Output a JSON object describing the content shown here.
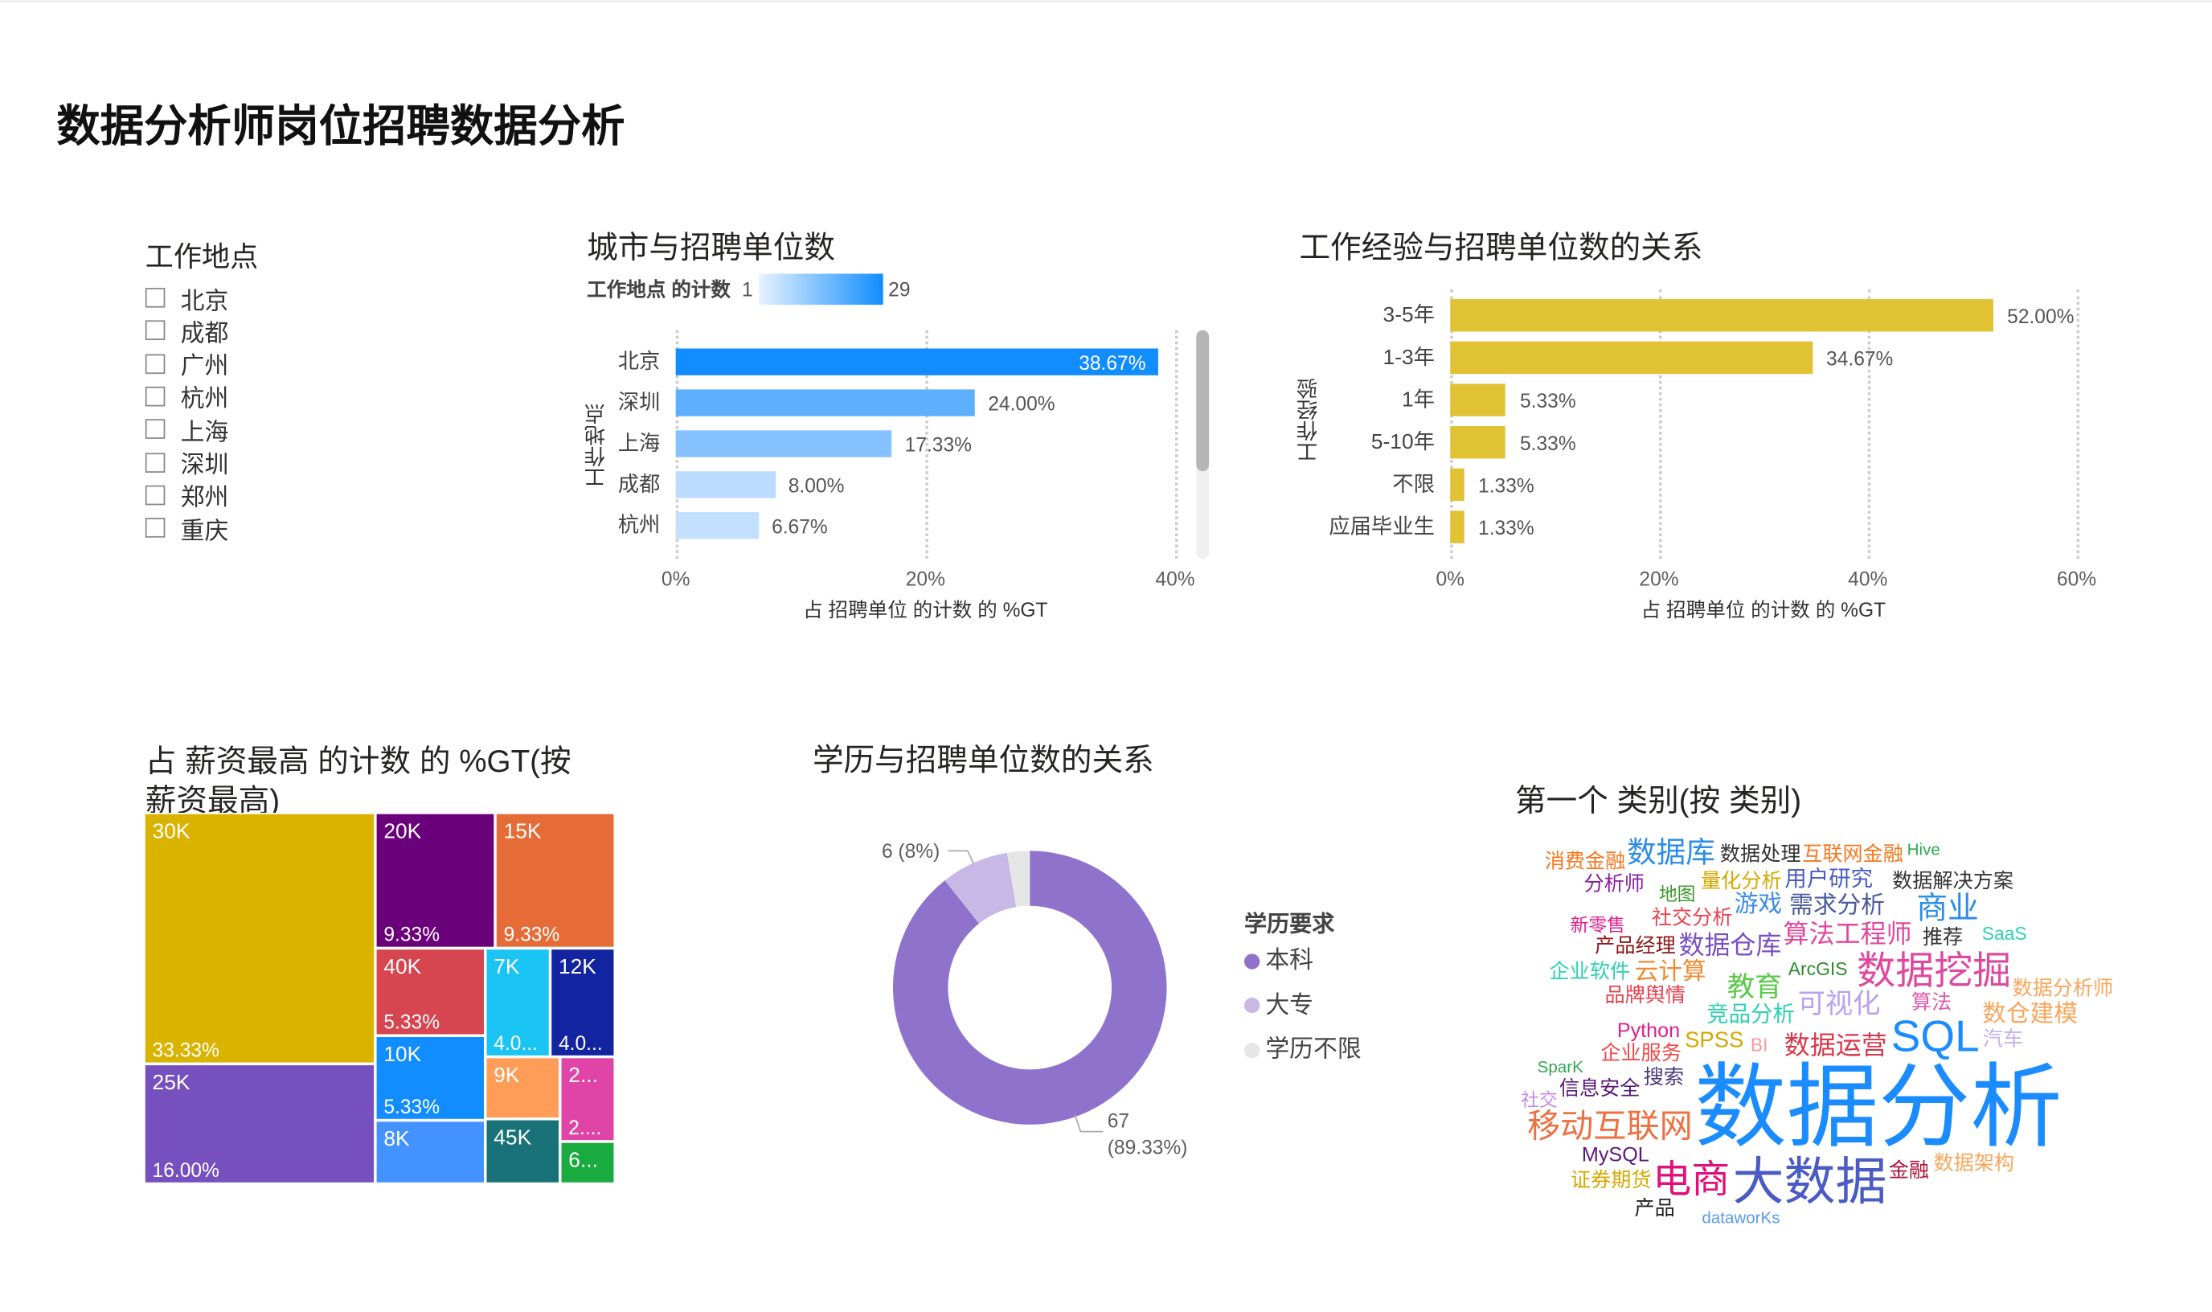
{
  "page_title": "数据分析师岗位招聘数据分析",
  "slicer": {
    "title": "工作地点",
    "items": [
      "北京",
      "成都",
      "广州",
      "杭州",
      "上海",
      "深圳",
      "郑州",
      "重庆"
    ]
  },
  "chart_data": [
    {
      "type": "bar",
      "orientation": "horizontal",
      "title": "城市与招聘单位数",
      "legend": {
        "title": "工作地点 的计数",
        "min": "1",
        "max": "29",
        "gradient": [
          "#e6f2ff",
          "#118dff"
        ]
      },
      "categories": [
        "北京",
        "深圳",
        "上海",
        "成都",
        "杭州"
      ],
      "values": [
        38.67,
        24.0,
        17.33,
        8.0,
        6.67
      ],
      "value_labels": [
        "38.67%",
        "24.00%",
        "17.33%",
        "8.00%",
        "6.67%"
      ],
      "colors": [
        "#118dff",
        "#5eb0ff",
        "#85c2ff",
        "#bcdcff",
        "#c4e0ff"
      ],
      "xlabel": "占 招聘单位 的计数 的 %GT",
      "ylabel": "工作地点",
      "xlim": [
        0,
        40
      ],
      "ticks": [
        "0%",
        "20%",
        "40%"
      ],
      "grid": true
    },
    {
      "type": "bar",
      "orientation": "horizontal",
      "title": "工作经验与招聘单位数的关系",
      "categories": [
        "3-5年",
        "1-3年",
        "1年",
        "5-10年",
        "不限",
        "应届毕业生"
      ],
      "values": [
        52.0,
        34.67,
        5.33,
        5.33,
        1.33,
        1.33
      ],
      "value_labels": [
        "52.00%",
        "34.67%",
        "5.33%",
        "5.33%",
        "1.33%",
        "1.33%"
      ],
      "color": "#e1c233",
      "xlabel": "占 招聘单位 的计数 的 %GT",
      "ylabel": "工作经验",
      "xlim": [
        0,
        60
      ],
      "ticks": [
        "0%",
        "20%",
        "40%",
        "60%"
      ],
      "grid": true
    },
    {
      "type": "treemap",
      "title": "占 薪资最高 的计数 的 %GT(按 薪资最高)",
      "categories": [
        "30K",
        "25K",
        "20K",
        "15K",
        "40K",
        "10K",
        "8K",
        "7K",
        "12K",
        "9K",
        "45K",
        "2...",
        "6..."
      ],
      "values": [
        33.33,
        16.0,
        9.33,
        9.33,
        5.33,
        5.33,
        4.0,
        4.0,
        4.0,
        2.67,
        2.67,
        2.67,
        1.33
      ],
      "value_labels": [
        "33.33%",
        "16.00%",
        "9.33%",
        "9.33%",
        "5.33%",
        "5.33%",
        "",
        "4.0...",
        "4.0...",
        "",
        "",
        "2....",
        ""
      ],
      "colors": [
        "#d9b300",
        "#7750c0",
        "#6b007b",
        "#e66c37",
        "#d64550",
        "#118dff",
        "#4492ff",
        "#1ac4f3",
        "#1324a0",
        "#fe9c58",
        "#197278",
        "#e044a7",
        "#1aab40"
      ]
    },
    {
      "type": "pie",
      "donut": true,
      "title": "学历与招聘单位数的关系",
      "legend": {
        "title": "学历要求",
        "position": "right"
      },
      "categories": [
        "本科",
        "大专",
        "学历不限"
      ],
      "values": [
        67,
        6,
        2
      ],
      "colors": [
        "#8f72cc",
        "#c8b8e6",
        "#e6e6e6"
      ],
      "data_labels": {
        "本科": [
          "67",
          "(89.33%)"
        ],
        "大专": [
          "6 (8%)"
        ]
      }
    },
    {
      "type": "wordcloud",
      "title": "第一个 类别(按 类别)",
      "words": [
        {
          "text": "消费金融",
          "color": "#f5771f"
        },
        {
          "text": "数据库",
          "color": "#2b8de8"
        },
        {
          "text": "分析师",
          "color": "#8b1e9e"
        },
        {
          "text": "数据处理",
          "color": "#333333"
        },
        {
          "text": "互联网金融",
          "color": "#f5771f"
        },
        {
          "text": "量化分析",
          "color": "#d4a900"
        },
        {
          "text": "Hive",
          "color": "#2fa84f"
        },
        {
          "text": "数据解决方案",
          "color": "#333333"
        },
        {
          "text": "地图",
          "color": "#3a9a2a"
        },
        {
          "text": "游戏",
          "color": "#3b8ce8"
        },
        {
          "text": "用户研究",
          "color": "#4a5bc4"
        },
        {
          "text": "推荐",
          "color": "#333333"
        },
        {
          "text": "商业",
          "color": "#2b8de8"
        },
        {
          "text": "社交分析",
          "color": "#e8414f"
        },
        {
          "text": "算法工程师",
          "color": "#e0479e"
        },
        {
          "text": "SaaS",
          "color": "#2ed1b0"
        },
        {
          "text": "新零售",
          "color": "#e0208a"
        },
        {
          "text": "产品经理",
          "color": "#8b1a1a"
        },
        {
          "text": "数据仓库",
          "color": "#7a4fc4"
        },
        {
          "text": "云计算",
          "color": "#f08a30"
        },
        {
          "text": "需求分析",
          "color": "#4a5b9a"
        },
        {
          "text": "数据挖掘",
          "color": "#e0479e"
        },
        {
          "text": "可视化",
          "color": "#b8a2f0"
        },
        {
          "text": "数据分析师",
          "color": "#fca55a"
        },
        {
          "text": "品牌舆情",
          "color": "#e8414f"
        },
        {
          "text": "Python",
          "color": "#e0208a"
        },
        {
          "text": "教育",
          "color": "#5ac84a"
        },
        {
          "text": "算法",
          "color": "#e05aae"
        },
        {
          "text": "竞品分析",
          "color": "#2ed1b0"
        },
        {
          "text": "数仓建模",
          "color": "#fca55a"
        },
        {
          "text": "企业服务",
          "color": "#f04848"
        },
        {
          "text": "ArcGIS",
          "color": "#2f8a2f"
        },
        {
          "text": "企业软件",
          "color": "#2ed1b0"
        },
        {
          "text": "SPSS",
          "color": "#d4a900"
        },
        {
          "text": "搜索",
          "color": "#4a3a7a"
        },
        {
          "text": "BI",
          "color": "#f89a9a"
        },
        {
          "text": "数据运营",
          "color": "#d8364a"
        },
        {
          "text": "SQL",
          "color": "#1a8cff"
        },
        {
          "text": "汽车",
          "color": "#c4b0f0"
        },
        {
          "text": "信息安全",
          "color": "#5a1a7a"
        },
        {
          "text": "数据分析",
          "color": "#1a8cff"
        },
        {
          "text": "SparK",
          "color": "#2fa84f"
        },
        {
          "text": "MySQL",
          "color": "#5a1a7a"
        },
        {
          "text": "社交",
          "color": "#c488e0"
        },
        {
          "text": "移动互联网",
          "color": "#ee7040"
        },
        {
          "text": "证券期货",
          "color": "#d4a900"
        },
        {
          "text": "产品",
          "color": "#222222"
        },
        {
          "text": "电商",
          "color": "#e0107a"
        },
        {
          "text": "大数据",
          "color": "#4a5bc4"
        },
        {
          "text": "金融",
          "color": "#b0103a"
        },
        {
          "text": "数据架构",
          "color": "#fca55a"
        },
        {
          "text": "dataworKs",
          "color": "#5a9af0"
        }
      ]
    }
  ]
}
